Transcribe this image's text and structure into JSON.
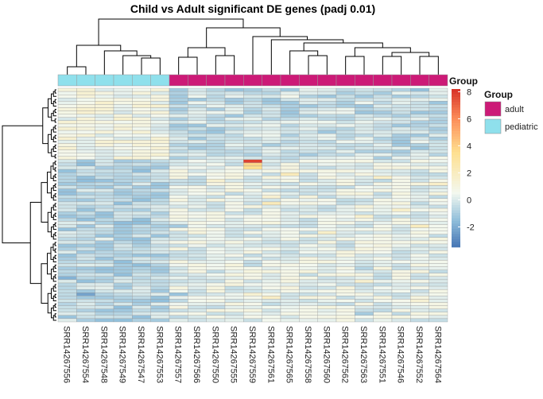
{
  "chart_data": {
    "type": "heatmap",
    "title": "Child vs Adult significant DE genes (padj 0.01)",
    "columns": [
      {
        "sample": "SRR14267556",
        "group": "pediatric"
      },
      {
        "sample": "SRR14267554",
        "group": "pediatric"
      },
      {
        "sample": "SRR14267548",
        "group": "pediatric"
      },
      {
        "sample": "SRR14267549",
        "group": "pediatric"
      },
      {
        "sample": "SRR14267547",
        "group": "pediatric"
      },
      {
        "sample": "SRR14267553",
        "group": "pediatric"
      },
      {
        "sample": "SRR14267557",
        "group": "adult"
      },
      {
        "sample": "SRR14267566",
        "group": "adult"
      },
      {
        "sample": "SRR14267550",
        "group": "adult"
      },
      {
        "sample": "SRR14267555",
        "group": "adult"
      },
      {
        "sample": "SRR14267559",
        "group": "adult"
      },
      {
        "sample": "SRR14267561",
        "group": "adult"
      },
      {
        "sample": "SRR14267565",
        "group": "adult"
      },
      {
        "sample": "SRR14267558",
        "group": "adult"
      },
      {
        "sample": "SRR14267560",
        "group": "adult"
      },
      {
        "sample": "SRR14267562",
        "group": "adult"
      },
      {
        "sample": "SRR14267563",
        "group": "adult"
      },
      {
        "sample": "SRR14267551",
        "group": "adult"
      },
      {
        "sample": "SRR14267546",
        "group": "adult"
      },
      {
        "sample": "SRR14267552",
        "group": "adult"
      },
      {
        "sample": "SRR14267564",
        "group": "adult"
      }
    ],
    "row_count": 72,
    "annotation_label": "Group",
    "annotation_legend": {
      "title": "Group",
      "entries": [
        {
          "label": "adult",
          "color": "#cc1a77"
        },
        {
          "label": "pediatric",
          "color": "#8fe0ec"
        }
      ]
    },
    "color_scale": {
      "min": -3.5,
      "max": 8.2,
      "ticks": [
        -2,
        0,
        2,
        4,
        6,
        8
      ],
      "stops": [
        {
          "value": -3.5,
          "color": "#4575b4"
        },
        {
          "value": -1.5,
          "color": "#91bfdb"
        },
        {
          "value": 0.5,
          "color": "#f3f8ef"
        },
        {
          "value": 3.5,
          "color": "#fee090"
        },
        {
          "value": 6.0,
          "color": "#fc8d59"
        },
        {
          "value": 8.2,
          "color": "#d73027"
        }
      ]
    },
    "notable_cells": [
      {
        "row": 22,
        "column": "SRR14267559",
        "value": 7.8
      },
      {
        "row": 23,
        "column": "SRR14267559",
        "value": 3.8
      },
      {
        "row": 24,
        "column": "SRR14267559",
        "value": 3.5
      }
    ]
  }
}
